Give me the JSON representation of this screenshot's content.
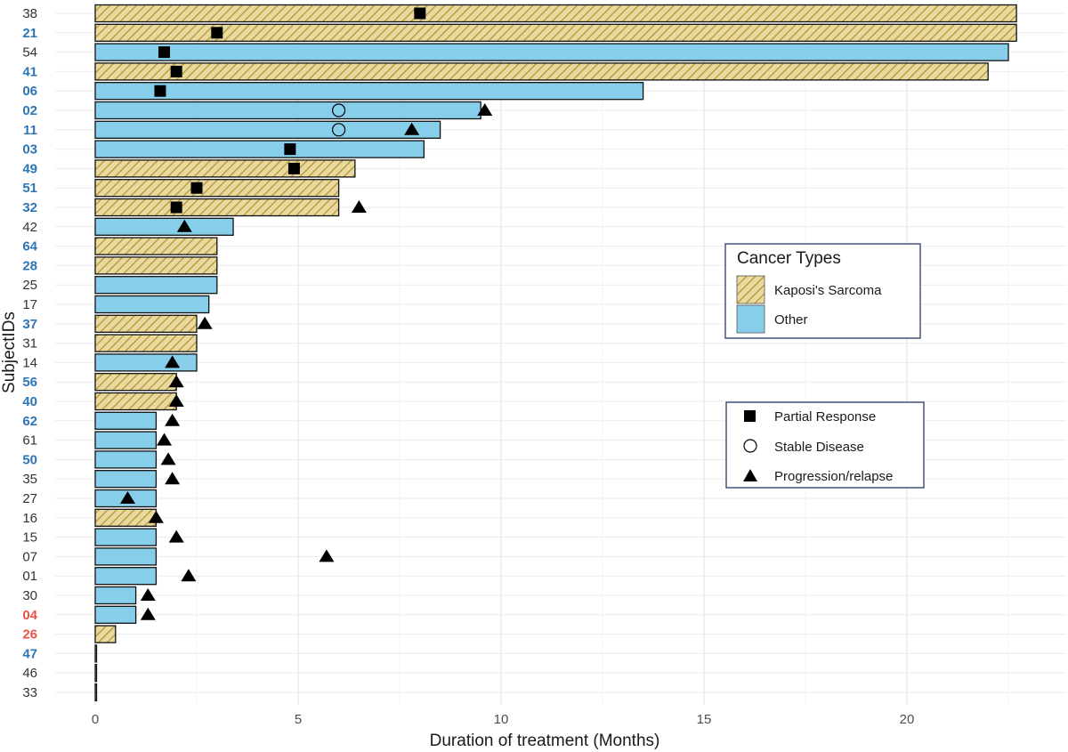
{
  "chart_data": {
    "type": "bar",
    "orientation": "horizontal",
    "title": "",
    "xlabel": "Duration of treatment (Months)",
    "ylabel": "SubjectIDs",
    "xlim": [
      0,
      23.3
    ],
    "xticks": [
      0,
      5,
      10,
      15,
      20
    ],
    "grid": true,
    "subjects": [
      {
        "id": "38",
        "id_color": "#333333",
        "type": "Kaposi's Sarcoma",
        "duration": 22.7,
        "pr": 8.0
      },
      {
        "id": "21",
        "id_color": "#2e75b6",
        "type": "Kaposi's Sarcoma",
        "duration": 22.7,
        "pr": 3.0
      },
      {
        "id": "54",
        "id_color": "#333333",
        "type": "Other",
        "duration": 22.5,
        "pr": 1.7
      },
      {
        "id": "41",
        "id_color": "#2e75b6",
        "type": "Kaposi's Sarcoma",
        "duration": 22.0,
        "pr": 2.0
      },
      {
        "id": "06",
        "id_color": "#2e75b6",
        "type": "Other",
        "duration": 13.5,
        "pr": 1.6
      },
      {
        "id": "02",
        "id_color": "#2e75b6",
        "type": "Other",
        "duration": 9.5,
        "sd": 6.0,
        "prog": 9.6
      },
      {
        "id": "11",
        "id_color": "#2e75b6",
        "type": "Other",
        "duration": 8.5,
        "sd": 6.0,
        "prog": 7.8
      },
      {
        "id": "03",
        "id_color": "#2e75b6",
        "type": "Other",
        "duration": 8.1,
        "pr": 4.8
      },
      {
        "id": "49",
        "id_color": "#2e75b6",
        "type": "Kaposi's Sarcoma",
        "duration": 6.4,
        "pr": 4.9
      },
      {
        "id": "51",
        "id_color": "#2e75b6",
        "type": "Kaposi's Sarcoma",
        "duration": 6.0,
        "pr": 2.5
      },
      {
        "id": "32",
        "id_color": "#2e75b6",
        "type": "Kaposi's Sarcoma",
        "duration": 6.0,
        "pr": 2.0,
        "prog": 6.5
      },
      {
        "id": "42",
        "id_color": "#333333",
        "type": "Other",
        "duration": 3.4,
        "prog": 2.2
      },
      {
        "id": "64",
        "id_color": "#2e75b6",
        "type": "Kaposi's Sarcoma",
        "duration": 3.0
      },
      {
        "id": "28",
        "id_color": "#2e75b6",
        "type": "Kaposi's Sarcoma",
        "duration": 3.0
      },
      {
        "id": "25",
        "id_color": "#333333",
        "type": "Other",
        "duration": 3.0
      },
      {
        "id": "17",
        "id_color": "#333333",
        "type": "Other",
        "duration": 2.8
      },
      {
        "id": "37",
        "id_color": "#2e75b6",
        "type": "Kaposi's Sarcoma",
        "duration": 2.5,
        "prog": 2.7
      },
      {
        "id": "31",
        "id_color": "#333333",
        "type": "Kaposi's Sarcoma",
        "duration": 2.5
      },
      {
        "id": "14",
        "id_color": "#333333",
        "type": "Other",
        "duration": 2.5,
        "prog": 1.9
      },
      {
        "id": "56",
        "id_color": "#2e75b6",
        "type": "Kaposi's Sarcoma",
        "duration": 2.0,
        "prog": 2.0
      },
      {
        "id": "40",
        "id_color": "#2e75b6",
        "type": "Kaposi's Sarcoma",
        "duration": 2.0,
        "prog": 2.0
      },
      {
        "id": "62",
        "id_color": "#2e75b6",
        "type": "Other",
        "duration": 1.5,
        "prog": 1.9
      },
      {
        "id": "61",
        "id_color": "#333333",
        "type": "Other",
        "duration": 1.5,
        "prog": 1.7
      },
      {
        "id": "50",
        "id_color": "#2e75b6",
        "type": "Other",
        "duration": 1.5,
        "prog": 1.8
      },
      {
        "id": "35",
        "id_color": "#333333",
        "type": "Other",
        "duration": 1.5,
        "prog": 1.9
      },
      {
        "id": "27",
        "id_color": "#333333",
        "type": "Other",
        "duration": 1.5,
        "prog": 0.8
      },
      {
        "id": "16",
        "id_color": "#333333",
        "type": "Kaposi's Sarcoma",
        "duration": 1.5,
        "prog": 1.5
      },
      {
        "id": "15",
        "id_color": "#333333",
        "type": "Other",
        "duration": 1.5,
        "prog": 2.0
      },
      {
        "id": "07",
        "id_color": "#333333",
        "type": "Other",
        "duration": 1.5,
        "prog": 5.7
      },
      {
        "id": "01",
        "id_color": "#333333",
        "type": "Other",
        "duration": 1.5,
        "prog": 2.3
      },
      {
        "id": "30",
        "id_color": "#333333",
        "type": "Other",
        "duration": 1.0,
        "prog": 1.3
      },
      {
        "id": "04",
        "id_color": "#e8524a",
        "type": "Other",
        "duration": 1.0,
        "prog": 1.3
      },
      {
        "id": "26",
        "id_color": "#e8524a",
        "type": "Kaposi's Sarcoma",
        "duration": 0.5
      },
      {
        "id": "47",
        "id_color": "#2e75b6",
        "type": "Other",
        "duration": 0.02
      },
      {
        "id": "46",
        "id_color": "#333333",
        "type": "Other",
        "duration": 0.02
      },
      {
        "id": "33",
        "id_color": "#333333",
        "type": "Other",
        "duration": 0.02
      }
    ],
    "legend_cancer": {
      "title": "Cancer Types",
      "placement": "right",
      "items": [
        {
          "label": "Kaposi's Sarcoma",
          "fill": "hatched",
          "color": "#e8d9a0",
          "hatch_color": "#b8962e"
        },
        {
          "label": "Other",
          "fill": "solid",
          "color": "#87ceeb"
        }
      ]
    },
    "legend_response": {
      "placement": "right",
      "items": [
        {
          "label": "Partial Response",
          "marker": "square"
        },
        {
          "label": "Stable Disease",
          "marker": "circle"
        },
        {
          "label": "Progression/relapse",
          "marker": "triangle"
        }
      ]
    },
    "colors": {
      "other": "#87ceeb",
      "ks_bg": "#e8d9a0",
      "ks_hatch": "#b8962e",
      "grid": "#ebebeb",
      "legend_border": "#1f2a5a"
    }
  }
}
